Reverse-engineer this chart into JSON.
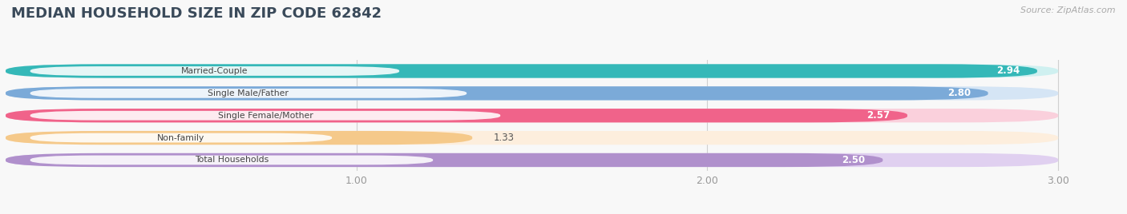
{
  "title": "MEDIAN HOUSEHOLD SIZE IN ZIP CODE 62842",
  "source": "Source: ZipAtlas.com",
  "categories": [
    "Married-Couple",
    "Single Male/Father",
    "Single Female/Mother",
    "Non-family",
    "Total Households"
  ],
  "values": [
    2.94,
    2.8,
    2.57,
    1.33,
    2.5
  ],
  "bar_colors": [
    "#35b8b8",
    "#7baad8",
    "#f0638a",
    "#f5c98a",
    "#b090cc"
  ],
  "bar_bg_colors": [
    "#cff0f0",
    "#d5e5f5",
    "#fad0dc",
    "#fdeedd",
    "#e0d0f0"
  ],
  "label_colors": [
    "white",
    "white",
    "white",
    "#555555",
    "white"
  ],
  "xlim": [
    0,
    3.18
  ],
  "xmin": 0,
  "xticks": [
    1.0,
    2.0,
    3.0
  ],
  "figsize": [
    14.06,
    2.68
  ],
  "dpi": 100,
  "title_fontsize": 13,
  "title_color": "#3a4a5a",
  "bar_height": 0.62,
  "n_bars": 5
}
